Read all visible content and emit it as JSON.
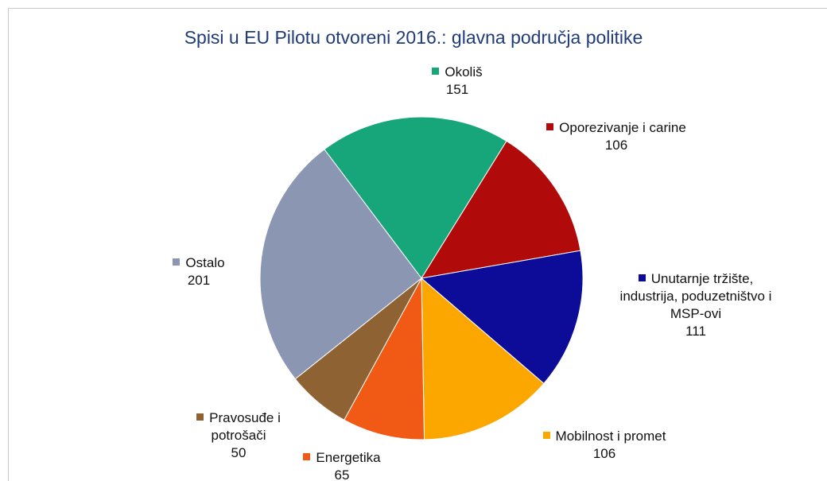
{
  "chart_data": {
    "type": "pie",
    "title": "Spisi u EU Pilotu otvoreni 2016.: glavna područja politike",
    "categories": [
      "Okoliš",
      "Oporezivanje i carine",
      "Unutarnje tržište, industrija, poduzetništvo i MSP-ovi",
      "Mobilnost i promet",
      "Energetika",
      "Pravosuđe i potrošači",
      "Ostalo"
    ],
    "values": [
      151,
      106,
      111,
      106,
      65,
      50,
      201
    ],
    "colors": [
      "#17a67a",
      "#b00a0a",
      "#0c0c98",
      "#fca600",
      "#f05a14",
      "#8e6232",
      "#8b96b3"
    ]
  }
}
